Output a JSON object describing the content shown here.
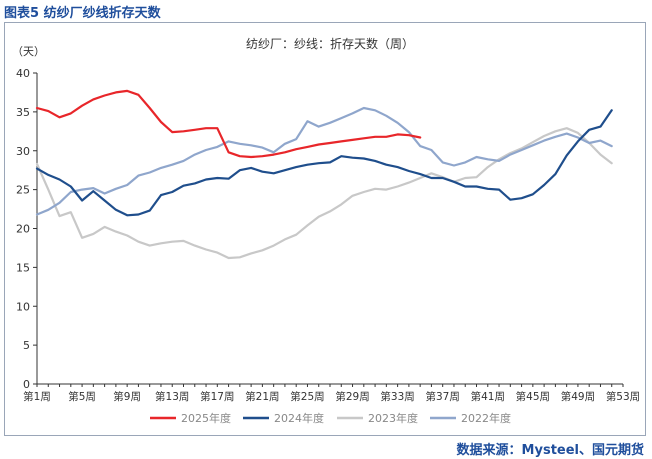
{
  "figure": {
    "title": "图表5 纺纱厂纱线折存天数",
    "source": "数据来源：Mysteel、国元期货"
  },
  "chart_data": {
    "type": "line",
    "title": "纺纱厂：纱线：折存天数（周）",
    "ylabel": "（天）",
    "xlabel": "",
    "ylim": [
      0,
      40
    ],
    "yticks": [
      0,
      5,
      10,
      15,
      20,
      25,
      30,
      35,
      40
    ],
    "xrange": [
      1,
      53
    ],
    "xtick_labels": [
      "第1周",
      "第5周",
      "第9周",
      "第13周",
      "第17周",
      "第21周",
      "第25周",
      "第29周",
      "第33周",
      "第37周",
      "第41周",
      "第45周",
      "第49周",
      "第53周"
    ],
    "legend_position": "bottom",
    "grid": false,
    "series": [
      {
        "name": "2025年度",
        "color": "#e8262a",
        "x": [
          1,
          2,
          3,
          4,
          5,
          6,
          7,
          8,
          9,
          10,
          11,
          12,
          13,
          14,
          15,
          16,
          17,
          18,
          19,
          20,
          21,
          22,
          23,
          24,
          25,
          26,
          27,
          28,
          29,
          30,
          31,
          32,
          33,
          34,
          35
        ],
        "values": [
          35.5,
          35.1,
          34.3,
          34.8,
          35.8,
          36.6,
          37.1,
          37.5,
          37.7,
          37.2,
          35.5,
          33.7,
          32.4,
          32.5,
          32.7,
          32.9,
          32.9,
          29.8,
          29.3,
          29.2,
          29.3,
          29.5,
          29.8,
          30.2,
          30.5,
          30.8,
          31.0,
          31.2,
          31.4,
          31.6,
          31.8,
          31.8,
          32.1,
          32.0,
          31.7
        ]
      },
      {
        "name": "2024年度",
        "color": "#1f4e8c",
        "x": [
          1,
          2,
          3,
          4,
          5,
          6,
          7,
          8,
          9,
          10,
          11,
          12,
          13,
          14,
          15,
          16,
          17,
          18,
          19,
          20,
          21,
          22,
          23,
          24,
          25,
          26,
          27,
          28,
          29,
          30,
          31,
          32,
          33,
          34,
          35,
          36,
          37,
          38,
          39,
          40,
          41,
          42,
          43,
          44,
          45,
          46,
          47,
          48,
          49,
          50,
          51,
          52,
          53
        ],
        "values": [
          27.7,
          26.9,
          26.3,
          25.4,
          23.6,
          24.8,
          23.6,
          22.4,
          21.7,
          21.8,
          22.3,
          24.3,
          24.7,
          25.5,
          25.8,
          26.3,
          26.5,
          26.4,
          27.5,
          27.8,
          27.3,
          27.1,
          27.5,
          27.9,
          28.2,
          28.4,
          28.5,
          29.3,
          29.1,
          29.0,
          28.7,
          28.2,
          27.9,
          27.4,
          27.0,
          26.5,
          26.5,
          26.0,
          25.4,
          25.4,
          25.1,
          25.0,
          23.7,
          23.9,
          24.4,
          25.6,
          27.0,
          29.4,
          31.2,
          32.7,
          33.1,
          35.2,
          null
        ]
      },
      {
        "name": "2023年度",
        "color": "#c8c8c8",
        "x": [
          1,
          2,
          3,
          4,
          5,
          6,
          7,
          8,
          9,
          10,
          11,
          12,
          13,
          14,
          15,
          16,
          17,
          18,
          19,
          20,
          21,
          22,
          23,
          24,
          25,
          26,
          27,
          28,
          29,
          30,
          31,
          32,
          33,
          34,
          35,
          36,
          37,
          38,
          39,
          40,
          41,
          42,
          43,
          44,
          45,
          46,
          47,
          48,
          49,
          50,
          51,
          52
        ],
        "values": [
          28.3,
          25.0,
          21.6,
          22.1,
          18.8,
          19.3,
          20.2,
          19.6,
          19.1,
          18.3,
          17.8,
          18.1,
          18.3,
          18.4,
          17.8,
          17.3,
          16.9,
          16.2,
          16.3,
          16.8,
          17.2,
          17.8,
          18.6,
          19.2,
          20.4,
          21.5,
          22.2,
          23.1,
          24.2,
          24.7,
          25.1,
          25.0,
          25.4,
          25.9,
          26.5,
          27.1,
          26.6,
          26.0,
          26.5,
          26.6,
          27.9,
          28.9,
          29.7,
          30.3,
          31.1,
          31.9,
          32.5,
          32.9,
          32.3,
          31.0,
          29.5,
          28.4
        ]
      },
      {
        "name": "2022年度",
        "color": "#8fa6cc",
        "x": [
          1,
          2,
          3,
          4,
          5,
          6,
          7,
          8,
          9,
          10,
          11,
          12,
          13,
          14,
          15,
          16,
          17,
          18,
          19,
          20,
          21,
          22,
          23,
          24,
          25,
          26,
          27,
          28,
          29,
          30,
          31,
          32,
          33,
          34,
          35,
          36,
          37,
          38,
          39,
          40,
          41,
          42,
          43,
          44,
          45,
          46,
          47,
          48,
          49,
          50,
          51,
          52
        ],
        "values": [
          21.8,
          22.4,
          23.3,
          24.7,
          25.0,
          25.2,
          24.5,
          25.1,
          25.6,
          26.8,
          27.2,
          27.8,
          28.2,
          28.7,
          29.5,
          30.1,
          30.5,
          31.2,
          30.9,
          30.7,
          30.4,
          29.8,
          30.9,
          31.5,
          33.8,
          33.1,
          33.6,
          34.2,
          34.8,
          35.5,
          35.2,
          34.5,
          33.6,
          32.4,
          30.6,
          30.1,
          28.5,
          28.1,
          28.5,
          29.2,
          28.9,
          28.7,
          29.5,
          30.1,
          30.7,
          31.3,
          31.8,
          32.2,
          31.7,
          31.0,
          31.3,
          30.6
        ]
      }
    ]
  }
}
